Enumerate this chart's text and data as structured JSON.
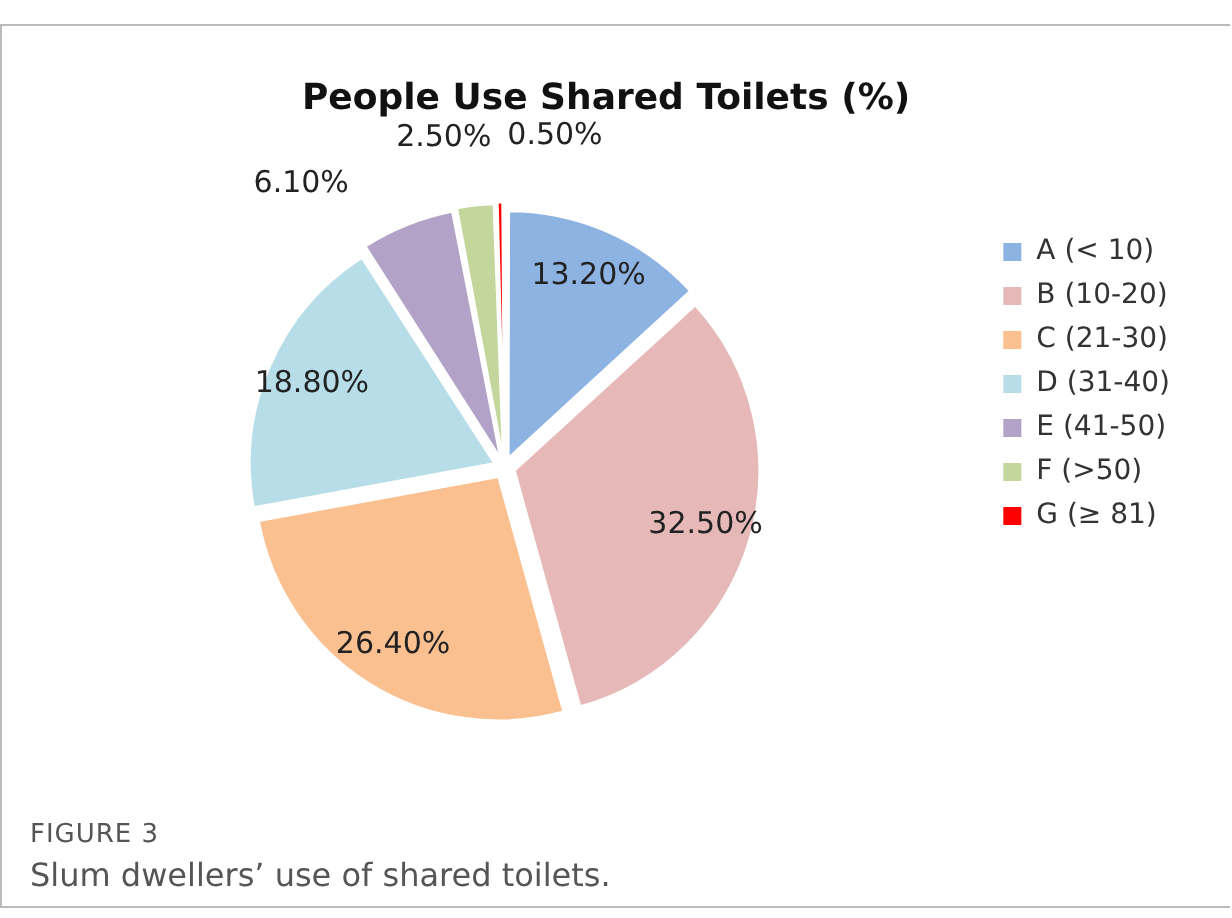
{
  "chart_data": {
    "type": "pie",
    "title": "People Use Shared Toilets (%)",
    "categories": [
      "A (< 10)",
      "B (10-20)",
      "C (21-30)",
      "D (31-40)",
      "E (41-50)",
      "F (>50)",
      "G (≥ 81)"
    ],
    "values": [
      13.2,
      32.5,
      26.4,
      18.8,
      6.1,
      2.5,
      0.5
    ],
    "colors": [
      "#8db3e2",
      "#e6b9b8",
      "#fac090",
      "#b7dee8",
      "#b3a2c7",
      "#c3d69b",
      "#ff0000"
    ],
    "value_labels": [
      "13.20%",
      "32.50%",
      "26.40%",
      "18.80%",
      "6.10%",
      "2.50%",
      "0.50%"
    ],
    "legend": "right",
    "annotations": [
      "FIGURE 3",
      "Slum dwellers’ use of shared toilets."
    ]
  }
}
